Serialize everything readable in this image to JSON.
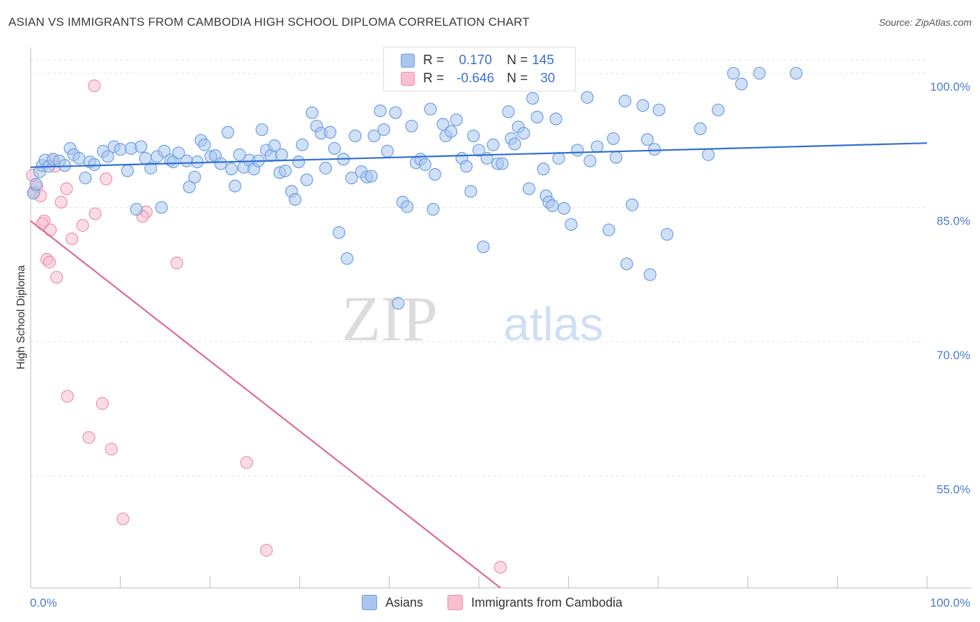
{
  "title": "ASIAN VS IMMIGRANTS FROM CAMBODIA HIGH SCHOOL DIPLOMA CORRELATION CHART",
  "source": "Source: ZipAtlas.com",
  "watermark": {
    "zip": "ZIP",
    "atlas": "atlas"
  },
  "legend_top": {
    "asians": {
      "r_label": "R =",
      "r_value": "0.170",
      "n_label": "N =",
      "n_value": "145"
    },
    "cambodia": {
      "r_label": "R =",
      "r_value": "-0.646",
      "n_label": "N =",
      "n_value": "30"
    }
  },
  "legend_bottom": {
    "asians": "Asians",
    "cambodia": "Immigrants from Cambodia"
  },
  "colors": {
    "asian_fill": "#a9c6ef",
    "asian_stroke": "#6d9fe0",
    "asian_line": "#2f6fce",
    "cambodia_fill": "#f7bfd0",
    "cambodia_stroke": "#ec90ae",
    "cambodia_line": "#e0679a",
    "tick_text": "#4a7cc9",
    "grid": "#e3e3e3"
  },
  "chart_data": {
    "type": "scatter",
    "ylabel": "High School Diploma",
    "xlabel": "",
    "x_tick_labels": [
      "0.0%",
      "100.0%"
    ],
    "y_tick_labels": [
      "100.0%",
      "85.0%",
      "70.0%",
      "55.0%"
    ],
    "y_ticks": [
      100,
      85,
      70,
      55
    ],
    "xlim": [
      0,
      100
    ],
    "ylim": [
      42.5,
      102.5
    ],
    "grid": true,
    "series": [
      {
        "name": "Asians",
        "trend": {
          "x": [
            0,
            100
          ],
          "y": [
            89.5,
            92.2
          ]
        },
        "points": [
          [
            0.3,
            86.6
          ],
          [
            0.6,
            87.6
          ],
          [
            1.0,
            89.0
          ],
          [
            1.3,
            89.7
          ],
          [
            1.6,
            90.3
          ],
          [
            2.0,
            89.6
          ],
          [
            2.5,
            90.4
          ],
          [
            3.2,
            90.2
          ],
          [
            3.8,
            89.7
          ],
          [
            4.4,
            91.6
          ],
          [
            4.8,
            90.9
          ],
          [
            5.4,
            90.5
          ],
          [
            6.1,
            88.3
          ],
          [
            6.6,
            90.1
          ],
          [
            7.1,
            89.8
          ],
          [
            8.1,
            91.3
          ],
          [
            8.6,
            90.7
          ],
          [
            9.3,
            91.8
          ],
          [
            10.0,
            91.5
          ],
          [
            10.8,
            89.1
          ],
          [
            11.2,
            91.6
          ],
          [
            11.8,
            84.8
          ],
          [
            12.3,
            91.8
          ],
          [
            12.8,
            90.5
          ],
          [
            13.4,
            89.4
          ],
          [
            14.1,
            90.7
          ],
          [
            14.6,
            85.0
          ],
          [
            14.9,
            91.3
          ],
          [
            15.6,
            90.3
          ],
          [
            15.9,
            90.1
          ],
          [
            16.5,
            91.1
          ],
          [
            17.4,
            90.2
          ],
          [
            17.7,
            87.3
          ],
          [
            18.3,
            88.4
          ],
          [
            18.6,
            90.1
          ],
          [
            19.0,
            92.5
          ],
          [
            19.4,
            92.0
          ],
          [
            20.1,
            90.7
          ],
          [
            20.6,
            90.8
          ],
          [
            21.2,
            89.9
          ],
          [
            22.0,
            93.4
          ],
          [
            22.4,
            89.3
          ],
          [
            22.8,
            87.4
          ],
          [
            23.3,
            90.9
          ],
          [
            23.8,
            89.5
          ],
          [
            24.4,
            90.3
          ],
          [
            24.9,
            89.3
          ],
          [
            25.4,
            90.2
          ],
          [
            25.8,
            93.7
          ],
          [
            26.3,
            91.4
          ],
          [
            26.8,
            90.8
          ],
          [
            27.2,
            91.9
          ],
          [
            27.8,
            88.9
          ],
          [
            28.0,
            90.9
          ],
          [
            28.4,
            89.1
          ],
          [
            29.1,
            86.8
          ],
          [
            29.5,
            85.9
          ],
          [
            29.9,
            90.1
          ],
          [
            30.3,
            92.0
          ],
          [
            30.8,
            88.1
          ],
          [
            31.4,
            95.6
          ],
          [
            31.9,
            94.1
          ],
          [
            32.4,
            93.3
          ],
          [
            32.9,
            89.4
          ],
          [
            33.4,
            93.4
          ],
          [
            33.9,
            91.6
          ],
          [
            34.4,
            82.2
          ],
          [
            34.9,
            90.4
          ],
          [
            35.3,
            79.3
          ],
          [
            35.8,
            88.3
          ],
          [
            36.2,
            93.0
          ],
          [
            36.9,
            89.0
          ],
          [
            37.5,
            88.4
          ],
          [
            38.0,
            88.5
          ],
          [
            38.3,
            93.0
          ],
          [
            39.0,
            95.8
          ],
          [
            39.4,
            93.7
          ],
          [
            39.8,
            91.3
          ],
          [
            40.7,
            95.6
          ],
          [
            41.0,
            74.3
          ],
          [
            41.5,
            85.6
          ],
          [
            42.0,
            85.1
          ],
          [
            42.5,
            94.1
          ],
          [
            43.0,
            90.0
          ],
          [
            43.5,
            90.4
          ],
          [
            44.0,
            89.8
          ],
          [
            44.6,
            96.0
          ],
          [
            44.9,
            84.8
          ],
          [
            45.1,
            88.7
          ],
          [
            46.0,
            94.3
          ],
          [
            46.3,
            93.0
          ],
          [
            46.9,
            93.5
          ],
          [
            47.5,
            94.8
          ],
          [
            48.1,
            90.5
          ],
          [
            48.6,
            89.6
          ],
          [
            49.1,
            86.8
          ],
          [
            49.4,
            93.0
          ],
          [
            50.0,
            91.4
          ],
          [
            50.5,
            80.6
          ],
          [
            50.9,
            90.5
          ],
          [
            51.6,
            92.0
          ],
          [
            52.1,
            89.9
          ],
          [
            52.6,
            89.9
          ],
          [
            53.3,
            95.7
          ],
          [
            53.6,
            92.7
          ],
          [
            54.0,
            92.1
          ],
          [
            54.4,
            94.0
          ],
          [
            55.0,
            93.3
          ],
          [
            55.6,
            87.1
          ],
          [
            56.0,
            97.2
          ],
          [
            56.5,
            95.1
          ],
          [
            57.2,
            89.3
          ],
          [
            57.5,
            86.3
          ],
          [
            57.8,
            85.6
          ],
          [
            58.2,
            85.2
          ],
          [
            58.6,
            94.9
          ],
          [
            58.9,
            90.5
          ],
          [
            59.5,
            84.9
          ],
          [
            60.3,
            83.1
          ],
          [
            61.0,
            91.4
          ],
          [
            62.1,
            97.3
          ],
          [
            62.4,
            90.2
          ],
          [
            63.2,
            91.8
          ],
          [
            64.5,
            82.5
          ],
          [
            65.0,
            92.7
          ],
          [
            65.3,
            90.6
          ],
          [
            66.3,
            96.9
          ],
          [
            66.5,
            78.7
          ],
          [
            67.1,
            85.3
          ],
          [
            68.3,
            96.4
          ],
          [
            68.8,
            92.6
          ],
          [
            69.1,
            77.5
          ],
          [
            69.6,
            91.5
          ],
          [
            70.1,
            95.9
          ],
          [
            71.0,
            82.0
          ],
          [
            74.7,
            93.8
          ],
          [
            75.6,
            90.9
          ],
          [
            76.7,
            95.9
          ],
          [
            78.4,
            100.0
          ],
          [
            79.3,
            98.8
          ],
          [
            81.3,
            100.0
          ],
          [
            85.4,
            100.0
          ]
        ]
      },
      {
        "name": "Immigrants from Cambodia",
        "trend": {
          "x": [
            0,
            52.4
          ],
          "y": [
            83.5,
            42.5
          ]
        },
        "points": [
          [
            0.2,
            88.6
          ],
          [
            0.4,
            86.8
          ],
          [
            0.7,
            87.3
          ],
          [
            1.1,
            86.3
          ],
          [
            1.5,
            83.5
          ],
          [
            1.8,
            79.2
          ],
          [
            2.1,
            78.9
          ],
          [
            2.5,
            90.2
          ],
          [
            2.7,
            89.6
          ],
          [
            3.4,
            85.6
          ],
          [
            4.0,
            87.1
          ],
          [
            4.6,
            81.5
          ],
          [
            5.8,
            83.0
          ],
          [
            7.1,
            98.6
          ],
          [
            7.2,
            84.3
          ],
          [
            8.4,
            88.2
          ],
          [
            12.9,
            84.5
          ],
          [
            16.3,
            78.8
          ],
          [
            2.9,
            77.2
          ],
          [
            1.3,
            83.2
          ],
          [
            2.2,
            82.5
          ],
          [
            4.1,
            63.9
          ],
          [
            6.5,
            59.3
          ],
          [
            8.0,
            63.1
          ],
          [
            9.0,
            58.0
          ],
          [
            10.3,
            50.2
          ],
          [
            24.1,
            56.5
          ],
          [
            26.3,
            46.7
          ],
          [
            52.4,
            44.8
          ],
          [
            12.5,
            84.0
          ]
        ]
      }
    ]
  }
}
